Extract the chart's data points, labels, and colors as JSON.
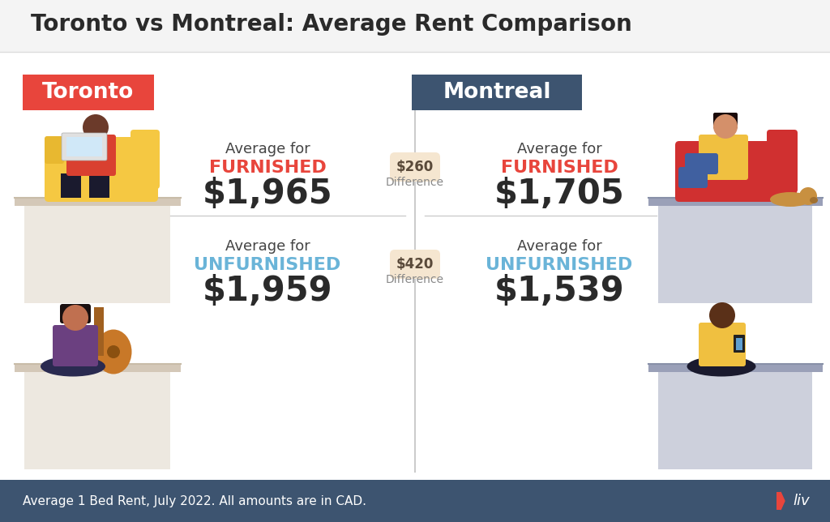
{
  "title": "Toronto vs Montreal: Average Rent Comparison",
  "title_fontsize": 20,
  "bg_color": "#f4f4f4",
  "content_bg": "#ffffff",
  "footer_bg": "#3d5470",
  "footer_text": "Average 1 Bed Rent, July 2022. All amounts are in CAD.",
  "footer_text_color": "#ffffff",
  "toronto_label": "Toronto",
  "montreal_label": "Montreal",
  "toronto_label_bg": "#e8453c",
  "montreal_label_bg": "#3d5470",
  "label_text_color": "#ffffff",
  "furnished_label": "FURNISHED",
  "unfurnished_label": "UNFURNISHED",
  "furnished_color": "#e8453c",
  "unfurnished_color": "#6ab4d8",
  "average_for_text": "Average for",
  "average_for_fontsize": 13,
  "furnished_fontsize": 16,
  "price_fontsize": 30,
  "price_color": "#2a2a2a",
  "toronto_furnished_price": "$1,965",
  "toronto_unfurnished_price": "$1,959",
  "montreal_furnished_price": "$1,705",
  "montreal_unfurnished_price": "$1,539",
  "furnished_diff": "$260",
  "unfurnished_diff": "$420",
  "diff_label": "Difference",
  "diff_bg": "#f5e6d0",
  "diff_text_color": "#5a4a3a",
  "diff_fontsize": 12,
  "divider_color": "#cccccc",
  "center_line_color": "#cccccc",
  "liv_logo_color": "#e8453c",
  "toronto_ped_color": "#e8e4e0",
  "montreal_ped_color": "#c8ccd8"
}
